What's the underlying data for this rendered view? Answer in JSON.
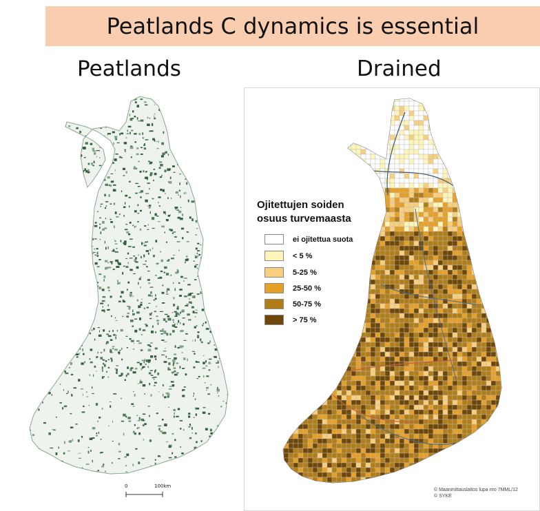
{
  "banner": {
    "title": "Peatlands C dynamics is essential"
  },
  "panels": {
    "left_title": "Peatlands",
    "right_title": "Drained"
  },
  "left_map": {
    "scale_start": "0",
    "scale_end": "100km"
  },
  "legend": {
    "title_line1": "Ojitettujen soiden",
    "title_line2": "osuus turvemaasta",
    "items": [
      {
        "label": "ei ojitettua suota",
        "color": "#ffffff"
      },
      {
        "label": "< 5 %",
        "color": "#fdf5b9"
      },
      {
        "label": "5-25 %",
        "color": "#f7cf7e"
      },
      {
        "label": "25-50 %",
        "color": "#e6a028"
      },
      {
        "label": "50-75 %",
        "color": "#b07d18"
      },
      {
        "label": "> 75 %",
        "color": "#6e4606"
      }
    ]
  },
  "copyright": {
    "line1": "© Maanmittauslaitos lupa nro 7MML/12",
    "line2": "© SYKE"
  },
  "colors": {
    "banner": "#f9cdb0",
    "peat_dark": "#35603f",
    "peat_light": "#eef3ee"
  }
}
